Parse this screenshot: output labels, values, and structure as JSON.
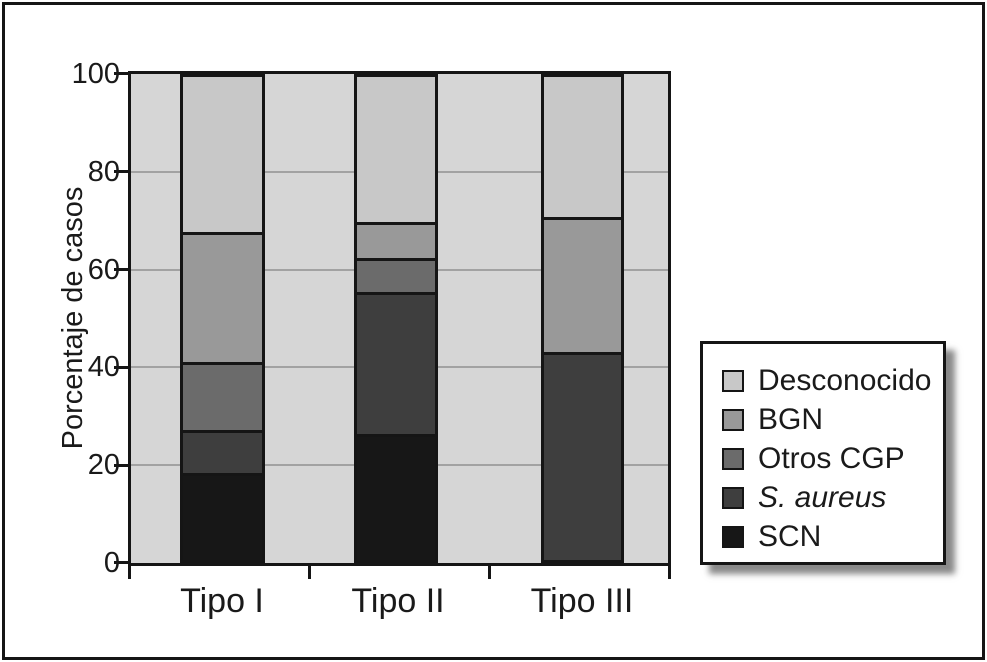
{
  "figure": {
    "background": "#ffffff",
    "frame_color": "#151515",
    "text_color": "#1a1a1a"
  },
  "chart_data": {
    "type": "bar",
    "stacked": true,
    "ylabel": "Porcentaje de casos",
    "xlabel": "",
    "ylim": [
      0,
      100
    ],
    "y_ticks": [
      0,
      20,
      40,
      60,
      80,
      100
    ],
    "y_tick_labels": [
      "0",
      "20",
      "40",
      "60",
      "80",
      "100"
    ],
    "categories": [
      "Tipo I",
      "Tipo II",
      "Tipo III"
    ],
    "series": [
      {
        "name": "Desconocido",
        "color": "#c8c8c8",
        "values": [
          32,
          30,
          29
        ]
      },
      {
        "name": "BGN",
        "color": "#999999",
        "values": [
          27,
          7.5,
          28
        ]
      },
      {
        "name": "Otros CGP",
        "color": "#6b6b6b",
        "values": [
          14,
          7,
          0
        ]
      },
      {
        "name": "S. aureus",
        "color": "#3e3e3e",
        "italic": true,
        "values": [
          9,
          29.5,
          43
        ]
      },
      {
        "name": "SCN",
        "color": "#171717",
        "values": [
          18,
          26,
          0
        ]
      }
    ],
    "totals_per_category": [
      100,
      100,
      100
    ],
    "legend_position": "right",
    "grid": "horizontal",
    "plot_background": "#d6d6d6",
    "gridline_color": "#a2a2a2",
    "separator_color": "#151515"
  }
}
